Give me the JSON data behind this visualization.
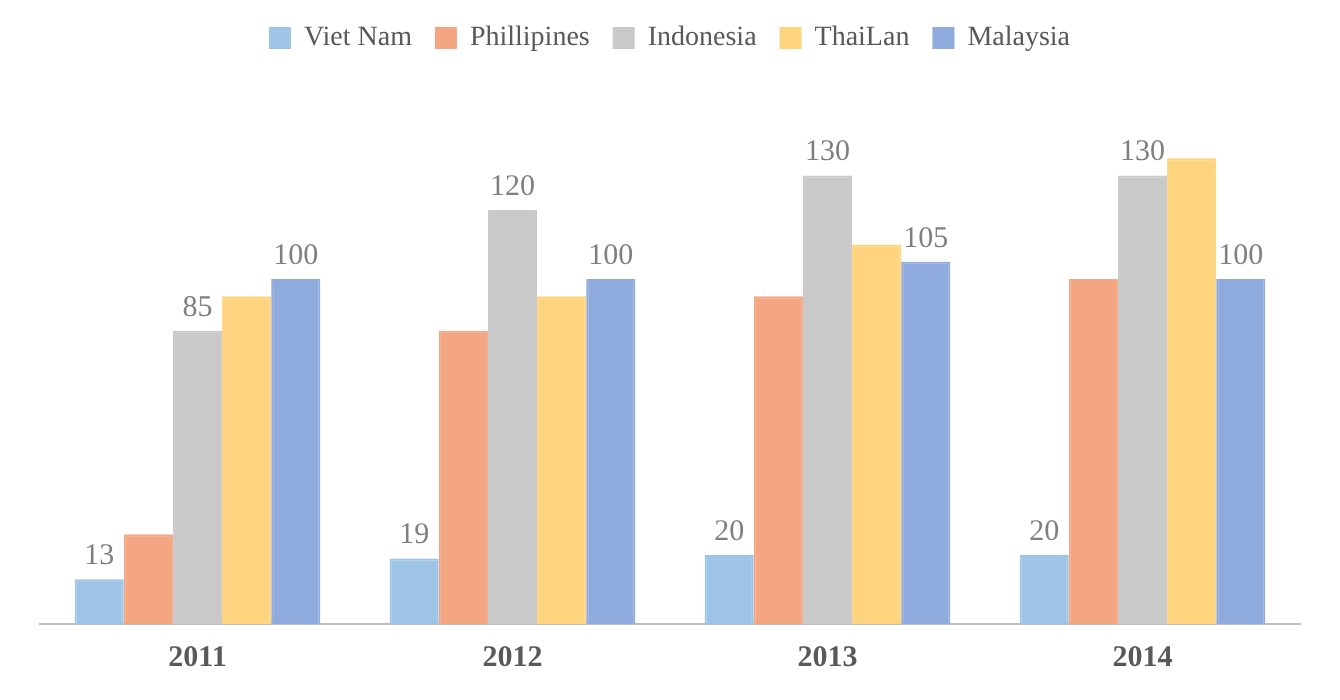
{
  "chart_data": {
    "type": "bar",
    "categories": [
      "2011",
      "2012",
      "2013",
      "2014"
    ],
    "series": [
      {
        "name": "Viet Nam",
        "color": "#9dc3e6",
        "values": [
          13,
          19,
          20,
          20
        ],
        "value_labels": [
          "13",
          "19",
          "20",
          "20"
        ]
      },
      {
        "name": "Phillipines",
        "color": "#f4a582",
        "values": [
          26,
          85,
          95,
          100
        ],
        "value_labels": [
          null,
          null,
          null,
          null
        ]
      },
      {
        "name": "Indonesia",
        "color": "#c9c9c9",
        "values": [
          85,
          120,
          130,
          130
        ],
        "value_labels": [
          "85",
          "120",
          "130",
          "130"
        ]
      },
      {
        "name": "ThaiLan",
        "color": "#ffd47f",
        "values": [
          95,
          95,
          110,
          135
        ],
        "value_labels": [
          null,
          null,
          null,
          null
        ]
      },
      {
        "name": "Malaysia",
        "color": "#8faadc",
        "values": [
          100,
          100,
          105,
          100
        ],
        "value_labels": [
          "100",
          "100",
          "105",
          "100"
        ]
      }
    ],
    "legend": "top",
    "grid": false
  }
}
